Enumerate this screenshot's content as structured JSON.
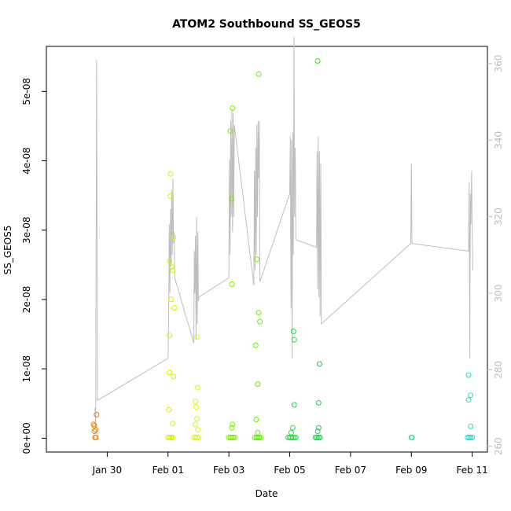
{
  "chart_data": {
    "type": "scatter",
    "title": "ATOM2 Southbound SS_GEOS5",
    "xlabel": "Date",
    "ylabel": "SS_GEOS5",
    "x_ticks": [
      "Jan 30",
      "Feb 01",
      "Feb 03",
      "Feb 05",
      "Feb 07",
      "Feb 09",
      "Feb 11"
    ],
    "x_tick_days": [
      30,
      32,
      34,
      36,
      38,
      40,
      42
    ],
    "xlim": [
      28.0,
      42.5
    ],
    "y_ticks": [
      "0e+00",
      "1e-08",
      "2e-08",
      "3e-08",
      "4e-08",
      "5e-08"
    ],
    "y_tick_values": [
      0,
      1e-08,
      2e-08,
      3e-08,
      4e-08,
      5e-08
    ],
    "ylim": [
      -2e-09,
      5.65e-08
    ],
    "y2_ticks": [
      "260",
      "280",
      "300",
      "320",
      "340",
      "360"
    ],
    "y2_tick_values": [
      260,
      280,
      300,
      320,
      340,
      360
    ],
    "y2lim": [
      258.5,
      364.5
    ],
    "series": [
      {
        "points": [
          {
            "x": 29.55,
            "y": 2e-09,
            "color": "#F08000"
          },
          {
            "x": 29.58,
            "y": 1.8e-09,
            "color": "#F08000"
          },
          {
            "x": 29.62,
            "y": 1.2e-09,
            "color": "#F08000"
          },
          {
            "x": 29.65,
            "y": 3.4e-09,
            "color": "#F08000"
          },
          {
            "x": 29.6,
            "y": 1e-10,
            "color": "#F08000"
          },
          {
            "x": 29.63,
            "y": 1e-10,
            "color": "#F08000"
          },
          {
            "x": 29.58,
            "y": 1e-09,
            "color": "#F08000"
          },
          {
            "x": 32.08,
            "y": 3.81e-08,
            "color": "#D8F000"
          },
          {
            "x": 32.07,
            "y": 3.49e-08,
            "color": "#D8F000"
          },
          {
            "x": 32.18,
            "y": 2.9e-08,
            "color": "#D8F000"
          },
          {
            "x": 32.05,
            "y": 2.55e-08,
            "color": "#D8F000"
          },
          {
            "x": 32.12,
            "y": 2.47e-08,
            "color": "#D8F000"
          },
          {
            "x": 32.16,
            "y": 2.42e-08,
            "color": "#D8F000"
          },
          {
            "x": 32.1,
            "y": 2e-08,
            "color": "#D8F000"
          },
          {
            "x": 32.2,
            "y": 1.88e-08,
            "color": "#D8F000"
          },
          {
            "x": 32.05,
            "y": 1.48e-08,
            "color": "#D8F000"
          },
          {
            "x": 32.05,
            "y": 9.5e-09,
            "color": "#D8F000"
          },
          {
            "x": 32.18,
            "y": 8.9e-09,
            "color": "#D8F000"
          },
          {
            "x": 32.03,
            "y": 4.1e-09,
            "color": "#D8F000"
          },
          {
            "x": 32.15,
            "y": 2.1e-09,
            "color": "#D8F000"
          },
          {
            "x": 32.0,
            "y": 1e-10,
            "color": "#D8F000"
          },
          {
            "x": 32.05,
            "y": 1e-10,
            "color": "#D8F000"
          },
          {
            "x": 32.1,
            "y": 1e-10,
            "color": "#D8F000"
          },
          {
            "x": 32.15,
            "y": 1e-10,
            "color": "#D8F000"
          },
          {
            "x": 32.95,
            "y": 1.46e-08,
            "color": "#E0F800"
          },
          {
            "x": 32.97,
            "y": 7.3e-09,
            "color": "#E0F800"
          },
          {
            "x": 32.9,
            "y": 5.3e-09,
            "color": "#E0F800"
          },
          {
            "x": 32.92,
            "y": 4.5e-09,
            "color": "#E0F800"
          },
          {
            "x": 32.95,
            "y": 2.8e-09,
            "color": "#E0F800"
          },
          {
            "x": 32.9,
            "y": 2e-09,
            "color": "#E0F800"
          },
          {
            "x": 32.98,
            "y": 1.2e-09,
            "color": "#E0F800"
          },
          {
            "x": 32.85,
            "y": 1e-10,
            "color": "#E0F800"
          },
          {
            "x": 32.9,
            "y": 1e-10,
            "color": "#E0F800"
          },
          {
            "x": 32.95,
            "y": 1e-10,
            "color": "#E0F800"
          },
          {
            "x": 33.0,
            "y": 1e-10,
            "color": "#E0F800"
          },
          {
            "x": 34.12,
            "y": 4.76e-08,
            "color": "#7CF000"
          },
          {
            "x": 34.05,
            "y": 4.43e-08,
            "color": "#7CF000"
          },
          {
            "x": 34.08,
            "y": 3.45e-08,
            "color": "#7CF000"
          },
          {
            "x": 34.1,
            "y": 2.22e-08,
            "color": "#7CF000"
          },
          {
            "x": 34.12,
            "y": 2e-09,
            "color": "#7CF000"
          },
          {
            "x": 34.1,
            "y": 1.5e-09,
            "color": "#7CF000"
          },
          {
            "x": 34.0,
            "y": 1e-10,
            "color": "#7CF000"
          },
          {
            "x": 34.05,
            "y": 1e-10,
            "color": "#7CF000"
          },
          {
            "x": 34.1,
            "y": 1e-10,
            "color": "#7CF000"
          },
          {
            "x": 34.15,
            "y": 1e-10,
            "color": "#7CF000"
          },
          {
            "x": 34.2,
            "y": 1e-10,
            "color": "#7CF000"
          },
          {
            "x": 34.98,
            "y": 5.25e-08,
            "color": "#64F000"
          },
          {
            "x": 34.92,
            "y": 2.58e-08,
            "color": "#64F000"
          },
          {
            "x": 34.98,
            "y": 1.81e-08,
            "color": "#64F000"
          },
          {
            "x": 35.02,
            "y": 1.68e-08,
            "color": "#64F000"
          },
          {
            "x": 34.88,
            "y": 1.34e-08,
            "color": "#64F000"
          },
          {
            "x": 34.95,
            "y": 7.8e-09,
            "color": "#64F000"
          },
          {
            "x": 34.9,
            "y": 2.7e-09,
            "color": "#64F000"
          },
          {
            "x": 34.95,
            "y": 8e-10,
            "color": "#64F000"
          },
          {
            "x": 34.85,
            "y": 1e-10,
            "color": "#64F000"
          },
          {
            "x": 34.9,
            "y": 1e-10,
            "color": "#64F000"
          },
          {
            "x": 34.95,
            "y": 1e-10,
            "color": "#64F000"
          },
          {
            "x": 35.0,
            "y": 1e-10,
            "color": "#64F000"
          },
          {
            "x": 35.05,
            "y": 1e-10,
            "color": "#64F000"
          },
          {
            "x": 36.12,
            "y": 1.54e-08,
            "color": "#20E040"
          },
          {
            "x": 36.15,
            "y": 1.42e-08,
            "color": "#20E040"
          },
          {
            "x": 36.15,
            "y": 4.8e-09,
            "color": "#20E040"
          },
          {
            "x": 36.1,
            "y": 1.5e-09,
            "color": "#20E040"
          },
          {
            "x": 36.05,
            "y": 8e-10,
            "color": "#20E040"
          },
          {
            "x": 35.95,
            "y": 1e-10,
            "color": "#20E040"
          },
          {
            "x": 36.0,
            "y": 1e-10,
            "color": "#20E040"
          },
          {
            "x": 36.05,
            "y": 1e-10,
            "color": "#20E040"
          },
          {
            "x": 36.1,
            "y": 1e-10,
            "color": "#20E040"
          },
          {
            "x": 36.15,
            "y": 1e-10,
            "color": "#20E040"
          },
          {
            "x": 36.2,
            "y": 1e-10,
            "color": "#20E040"
          },
          {
            "x": 36.92,
            "y": 5.44e-08,
            "color": "#40E020"
          },
          {
            "x": 36.98,
            "y": 1.07e-08,
            "color": "#20D050"
          },
          {
            "x": 36.95,
            "y": 5.1e-09,
            "color": "#20D050"
          },
          {
            "x": 36.95,
            "y": 1.5e-09,
            "color": "#20D050"
          },
          {
            "x": 36.92,
            "y": 1e-09,
            "color": "#20D050"
          },
          {
            "x": 36.85,
            "y": 1e-10,
            "color": "#20D050"
          },
          {
            "x": 36.9,
            "y": 1e-10,
            "color": "#20D050"
          },
          {
            "x": 36.95,
            "y": 1e-10,
            "color": "#20D050"
          },
          {
            "x": 37.0,
            "y": 1e-10,
            "color": "#20D050"
          },
          {
            "x": 40.0,
            "y": 1e-10,
            "color": "#20E0A0"
          },
          {
            "x": 40.02,
            "y": 1e-10,
            "color": "#20E0A0"
          },
          {
            "x": 41.88,
            "y": 9.1e-09,
            "color": "#20E0C0"
          },
          {
            "x": 41.95,
            "y": 6.2e-09,
            "color": "#20E0C0"
          },
          {
            "x": 41.88,
            "y": 5.5e-09,
            "color": "#20E0C0"
          },
          {
            "x": 41.95,
            "y": 1.7e-09,
            "color": "#20E0C0"
          },
          {
            "x": 41.85,
            "y": 1e-10,
            "color": "#20E0C0"
          },
          {
            "x": 41.9,
            "y": 1e-10,
            "color": "#20E0C0"
          },
          {
            "x": 41.95,
            "y": 1e-10,
            "color": "#20E0C0"
          },
          {
            "x": 42.0,
            "y": 1e-10,
            "color": "#20E0C0"
          }
        ]
      },
      {
        "axis": "right",
        "color": "#bebebe",
        "type": "line",
        "points": [
          [
            29.6,
            270
          ],
          [
            29.62,
            265
          ],
          [
            29.65,
            361
          ],
          [
            29.68,
            272
          ],
          [
            32.0,
            283
          ],
          [
            32.02,
            292
          ],
          [
            32.04,
            318
          ],
          [
            32.06,
            300
          ],
          [
            32.08,
            322
          ],
          [
            32.1,
            307
          ],
          [
            32.12,
            327
          ],
          [
            32.14,
            310
          ],
          [
            32.16,
            330
          ],
          [
            32.18,
            313
          ],
          [
            32.2,
            316
          ],
          [
            32.22,
            304
          ],
          [
            32.85,
            287
          ],
          [
            32.86,
            311
          ],
          [
            32.88,
            300
          ],
          [
            32.9,
            315
          ],
          [
            32.92,
            288
          ],
          [
            32.94,
            320
          ],
          [
            32.96,
            292
          ],
          [
            32.98,
            316
          ],
          [
            33.0,
            298
          ],
          [
            33.02,
            299
          ],
          [
            34.0,
            304
          ],
          [
            34.02,
            335
          ],
          [
            34.04,
            310
          ],
          [
            34.06,
            345
          ],
          [
            34.08,
            320
          ],
          [
            34.1,
            348
          ],
          [
            34.12,
            316
          ],
          [
            34.14,
            347
          ],
          [
            34.16,
            320
          ],
          [
            34.18,
            344
          ],
          [
            34.82,
            302
          ],
          [
            34.84,
            332
          ],
          [
            34.86,
            306
          ],
          [
            34.88,
            338
          ],
          [
            34.9,
            310
          ],
          [
            34.92,
            344
          ],
          [
            34.94,
            320
          ],
          [
            34.96,
            345
          ],
          [
            34.98,
            330
          ],
          [
            35.0,
            345
          ],
          [
            35.02,
            303
          ],
          [
            36.0,
            326
          ],
          [
            36.02,
            341
          ],
          [
            36.04,
            296
          ],
          [
            36.06,
            340
          ],
          [
            36.08,
            283
          ],
          [
            36.1,
            342
          ],
          [
            36.12,
            310
          ],
          [
            36.14,
            367
          ],
          [
            36.16,
            320
          ],
          [
            36.18,
            338
          ],
          [
            36.2,
            314
          ],
          [
            36.88,
            312
          ],
          [
            36.9,
            337
          ],
          [
            36.92,
            301
          ],
          [
            36.94,
            341
          ],
          [
            36.96,
            299
          ],
          [
            36.98,
            337
          ],
          [
            37.0,
            294
          ],
          [
            37.02,
            334
          ],
          [
            37.04,
            292
          ],
          [
            39.98,
            313
          ],
          [
            40.0,
            334
          ],
          [
            40.02,
            313
          ],
          [
            41.88,
            311
          ],
          [
            41.9,
            329
          ],
          [
            41.92,
            283
          ],
          [
            41.94,
            326
          ],
          [
            41.96,
            318
          ],
          [
            41.98,
            332
          ],
          [
            42.0,
            316
          ],
          [
            42.02,
            306
          ]
        ]
      }
    ]
  }
}
